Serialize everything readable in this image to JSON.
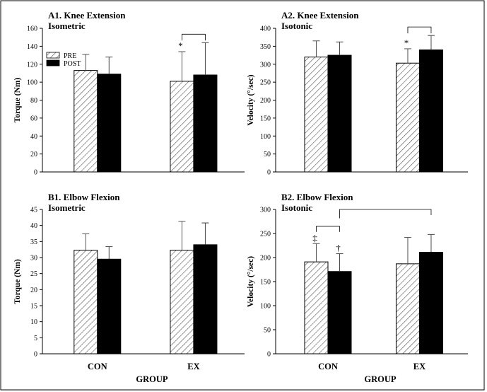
{
  "chart_data": [
    {
      "type": "bar",
      "title": "A1. Knee Extension",
      "subtitle": "Isometric",
      "ylabel": "Torque (Nm)",
      "xlabel": "",
      "ylim": [
        0,
        160
      ],
      "yticks": [
        0,
        20,
        40,
        60,
        80,
        100,
        120,
        140,
        160
      ],
      "categories": [
        "",
        ""
      ],
      "series": [
        {
          "name": "PRE",
          "values": [
            113,
            101
          ],
          "errors": [
            18,
            33
          ]
        },
        {
          "name": "POST",
          "values": [
            109,
            108
          ],
          "errors": [
            19,
            36
          ]
        }
      ],
      "legend": {
        "position": "top-left",
        "entries": [
          "PRE",
          "POST"
        ]
      },
      "annotations": [
        {
          "text": "*",
          "category": 1,
          "series": 0
        },
        {
          "type": "bracket",
          "category": 1,
          "label": ""
        }
      ]
    },
    {
      "type": "bar",
      "title": "A2. Knee Extension",
      "subtitle": "Isotonic",
      "ylabel": "Velocity (°/sec)",
      "xlabel": "",
      "ylim": [
        0,
        400
      ],
      "yticks": [
        0,
        50,
        100,
        150,
        200,
        250,
        300,
        350,
        400
      ],
      "categories": [
        "",
        ""
      ],
      "series": [
        {
          "name": "PRE",
          "values": [
            320,
            303
          ],
          "errors": [
            45,
            40
          ]
        },
        {
          "name": "POST",
          "values": [
            325,
            340
          ],
          "errors": [
            37,
            40
          ]
        }
      ],
      "annotations": [
        {
          "text": "*",
          "category": 1,
          "series": 0
        },
        {
          "type": "bracket",
          "category": 1,
          "label": ""
        }
      ]
    },
    {
      "type": "bar",
      "title": "B1. Elbow Flexion",
      "subtitle": "Isometric",
      "ylabel": "Torque (Nm)",
      "xlabel": "GROUP",
      "ylim": [
        0,
        45
      ],
      "yticks": [
        0,
        5,
        10,
        15,
        20,
        25,
        30,
        35,
        40,
        45
      ],
      "categories": [
        "CON",
        "EX"
      ],
      "series": [
        {
          "name": "PRE",
          "values": [
            32.3,
            32.3
          ],
          "errors": [
            5.1,
            9.0
          ]
        },
        {
          "name": "POST",
          "values": [
            29.5,
            34.0
          ],
          "errors": [
            3.9,
            6.8
          ]
        }
      ]
    },
    {
      "type": "bar",
      "title": "B2. Elbow Flexion",
      "subtitle": "Isotonic",
      "ylabel": "Velocity (°/sec)",
      "xlabel": "GROUP",
      "ylim": [
        0,
        300
      ],
      "yticks": [
        0,
        50,
        100,
        150,
        200,
        250,
        300
      ],
      "categories": [
        "CON",
        "EX"
      ],
      "series": [
        {
          "name": "PRE",
          "values": [
            191,
            187
          ],
          "errors": [
            38,
            55
          ]
        },
        {
          "name": "POST",
          "values": [
            171,
            211
          ],
          "errors": [
            37,
            37
          ]
        }
      ],
      "annotations": [
        {
          "text": "‡",
          "category": 0,
          "series": 0
        },
        {
          "text": "†",
          "category": 0,
          "series": 1
        },
        {
          "type": "bracket",
          "category": 0,
          "label": ""
        },
        {
          "type": "bracket",
          "span": "CON-POST to EX-POST",
          "label": ""
        }
      ]
    }
  ]
}
